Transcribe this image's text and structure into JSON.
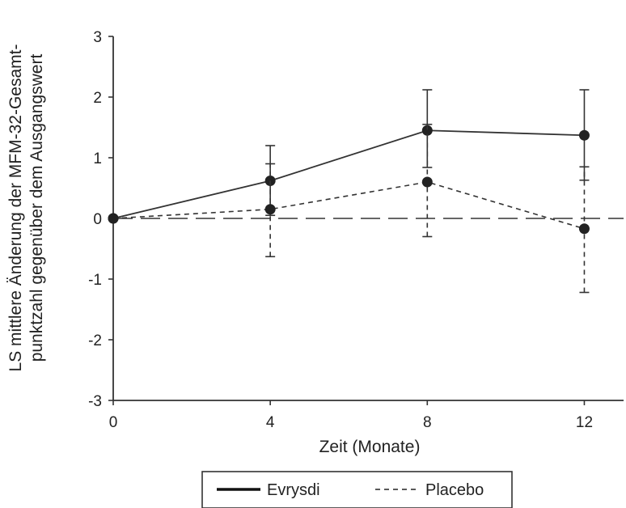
{
  "chart_data": {
    "type": "line",
    "xlabel": "Zeit (Monate)",
    "ylabel": [
      "LS mittlere Änderung der MFM-32-Gesamt-",
      "punktzahl gegenüber dem Ausgangswert"
    ],
    "xlim": [
      0,
      13
    ],
    "ylim": [
      -3,
      3
    ],
    "xticks": [
      "0",
      "4",
      "8",
      "12"
    ],
    "yticks": [
      "3",
      "2",
      "1",
      "0",
      "-1",
      "-2",
      "-3"
    ],
    "x": [
      0,
      4,
      8,
      12
    ],
    "grid": false,
    "reference_line": {
      "y": 0,
      "style": "long-dash"
    },
    "legend_position": "bottom-center",
    "series": [
      {
        "name": "Evrysdi",
        "line": "solid",
        "color": "#333333",
        "values": [
          0,
          0.62,
          1.45,
          1.37
        ],
        "ci_low": [
          0,
          0.05,
          0.84,
          0.63
        ],
        "ci_high": [
          0,
          1.2,
          2.12,
          2.12
        ]
      },
      {
        "name": "Placebo",
        "line": "dashed",
        "color": "#333333",
        "values": [
          0,
          0.15,
          0.6,
          -0.17
        ],
        "ci_low": [
          0,
          -0.63,
          -0.3,
          -1.22
        ],
        "ci_high": [
          0,
          0.9,
          1.55,
          0.85
        ]
      }
    ]
  }
}
